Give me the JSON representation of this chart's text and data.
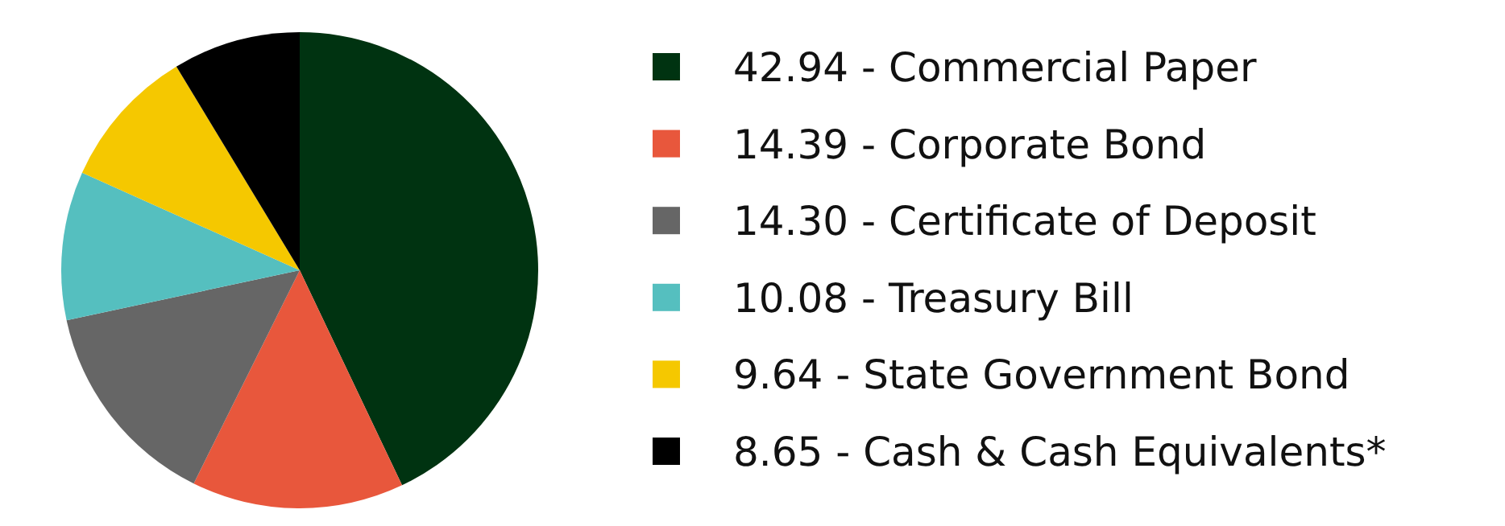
{
  "chart_data": {
    "type": "pie",
    "categories": [
      "Commercial Paper",
      "Corporate Bond",
      "Certificate of Deposit",
      "Treasury Bill",
      "State Government Bond",
      "Cash & Cash Equivalents*"
    ],
    "values": [
      42.94,
      14.39,
      14.3,
      10.08,
      9.64,
      8.65
    ],
    "value_labels": [
      "42.94",
      "14.39",
      "14.30",
      "10.08",
      "9.64",
      "8.65"
    ],
    "colors": [
      "#003311",
      "#e8573c",
      "#666666",
      "#55bfbf",
      "#f5c800",
      "#000000"
    ],
    "legend": "right"
  }
}
